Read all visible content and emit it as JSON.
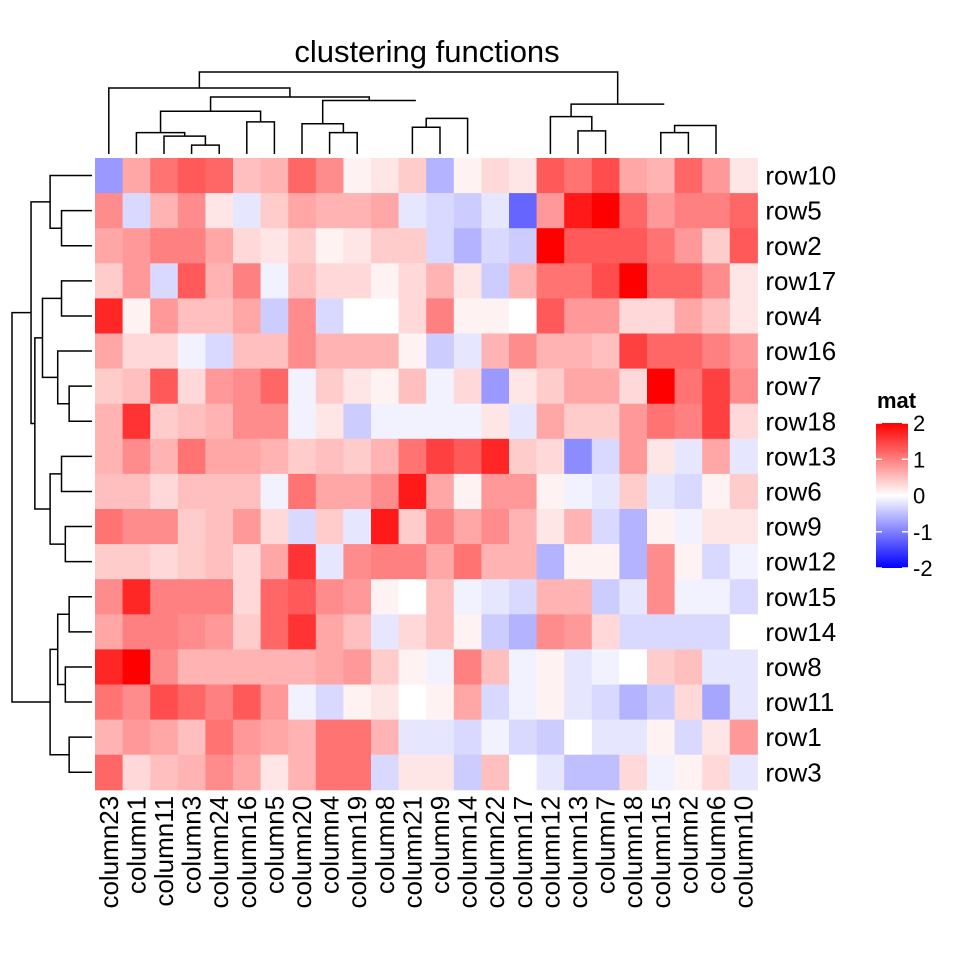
{
  "chart_data": {
    "type": "heatmap",
    "title": "clustering functions",
    "columns": [
      "column23",
      "column1",
      "column11",
      "column3",
      "column24",
      "column16",
      "column5",
      "column20",
      "column4",
      "column19",
      "column8",
      "column21",
      "column9",
      "column14",
      "column22",
      "column17",
      "column12",
      "column13",
      "column7",
      "column18",
      "column15",
      "column2",
      "column6",
      "column10"
    ],
    "rows": [
      "row10",
      "row5",
      "row2",
      "row17",
      "row4",
      "row16",
      "row7",
      "row18",
      "row13",
      "row6",
      "row9",
      "row12",
      "row15",
      "row14",
      "row8",
      "row11",
      "row1",
      "row3"
    ],
    "values": [
      [
        -0.8,
        0.7,
        1.1,
        1.3,
        1.2,
        0.5,
        0.6,
        1.2,
        0.9,
        0.1,
        0.2,
        0.4,
        -0.6,
        0.1,
        0.3,
        0.2,
        1.3,
        1.1,
        1.4,
        0.7,
        0.6,
        1.2,
        0.8,
        0.2
      ],
      [
        0.9,
        -0.3,
        0.6,
        0.9,
        0.2,
        -0.2,
        0.4,
        0.7,
        0.6,
        0.6,
        0.7,
        -0.2,
        -0.3,
        -0.4,
        -0.2,
        -1.2,
        0.8,
        1.8,
        2.0,
        1.2,
        0.8,
        1.0,
        1.0,
        1.2
      ],
      [
        0.7,
        0.8,
        1.0,
        1.0,
        0.7,
        0.3,
        0.2,
        0.4,
        0.1,
        0.2,
        0.4,
        0.4,
        -0.3,
        -0.6,
        -0.3,
        -0.4,
        2.3,
        1.3,
        1.3,
        1.3,
        1.1,
        0.8,
        0.4,
        1.3
      ],
      [
        0.4,
        0.8,
        -0.3,
        1.3,
        0.6,
        1.0,
        -0.1,
        0.5,
        0.3,
        0.3,
        0.1,
        0.3,
        0.6,
        0.2,
        -0.4,
        0.6,
        1.1,
        1.1,
        1.4,
        2.4,
        1.2,
        1.2,
        0.9,
        0.2
      ],
      [
        1.7,
        0.1,
        0.8,
        0.5,
        0.5,
        0.7,
        -0.4,
        0.9,
        -0.3,
        0.0,
        0.0,
        0.3,
        1.0,
        0.1,
        0.1,
        0.0,
        1.3,
        0.8,
        0.8,
        0.3,
        0.3,
        0.7,
        0.5,
        0.2
      ],
      [
        0.7,
        0.3,
        0.3,
        -0.1,
        -0.3,
        0.5,
        0.5,
        0.9,
        0.6,
        0.6,
        0.6,
        0.1,
        -0.4,
        -0.2,
        0.6,
        0.9,
        0.6,
        0.6,
        0.5,
        1.5,
        1.2,
        1.2,
        1.0,
        0.8
      ],
      [
        0.4,
        0.5,
        1.3,
        0.3,
        0.8,
        0.9,
        1.2,
        -0.1,
        0.4,
        0.2,
        0.1,
        0.5,
        -0.1,
        0.3,
        -0.8,
        0.2,
        0.4,
        0.7,
        0.7,
        0.3,
        2.3,
        1.1,
        1.5,
        0.9
      ],
      [
        0.6,
        1.6,
        0.4,
        0.5,
        0.6,
        0.9,
        0.9,
        -0.1,
        0.2,
        -0.4,
        -0.1,
        -0.1,
        -0.1,
        -0.1,
        0.2,
        -0.2,
        0.7,
        0.4,
        0.4,
        0.8,
        1.1,
        1.0,
        1.5,
        0.3
      ],
      [
        0.6,
        0.9,
        0.6,
        1.1,
        0.7,
        0.7,
        0.6,
        0.4,
        0.5,
        0.4,
        0.6,
        1.1,
        1.5,
        1.3,
        1.7,
        0.4,
        0.3,
        -0.9,
        -0.3,
        0.8,
        0.2,
        -0.2,
        0.7,
        -0.2
      ],
      [
        0.5,
        0.5,
        0.3,
        0.5,
        0.5,
        0.5,
        -0.1,
        1.1,
        0.7,
        0.7,
        0.9,
        1.8,
        0.7,
        0.1,
        0.8,
        0.8,
        0.1,
        -0.1,
        -0.2,
        0.4,
        -0.2,
        -0.3,
        0.1,
        0.4
      ],
      [
        1.1,
        0.9,
        0.9,
        0.4,
        0.5,
        0.8,
        0.3,
        -0.3,
        0.4,
        -0.2,
        1.8,
        0.4,
        1.0,
        0.7,
        0.9,
        0.6,
        0.2,
        0.6,
        -0.3,
        -0.6,
        0.1,
        -0.1,
        0.2,
        0.2
      ],
      [
        0.4,
        0.4,
        0.3,
        0.4,
        0.5,
        0.3,
        0.7,
        1.6,
        -0.2,
        0.9,
        1.0,
        1.0,
        0.7,
        1.1,
        0.6,
        0.6,
        -0.6,
        0.1,
        0.1,
        -0.6,
        0.9,
        0.1,
        -0.3,
        -0.1
      ],
      [
        0.9,
        1.7,
        1.0,
        1.0,
        1.0,
        0.3,
        1.2,
        1.3,
        0.9,
        0.8,
        0.1,
        0.0,
        0.5,
        -0.1,
        -0.2,
        -0.3,
        0.6,
        0.6,
        -0.4,
        -0.2,
        0.9,
        -0.1,
        -0.1,
        -0.3
      ],
      [
        0.7,
        1.0,
        1.0,
        0.9,
        0.8,
        0.4,
        1.2,
        1.6,
        0.7,
        0.5,
        -0.2,
        0.3,
        0.5,
        0.1,
        -0.4,
        -0.6,
        0.9,
        0.8,
        0.3,
        -0.3,
        -0.3,
        -0.3,
        -0.3,
        0.0
      ],
      [
        1.7,
        2.4,
        0.9,
        0.6,
        0.6,
        0.6,
        0.6,
        0.6,
        0.7,
        0.8,
        0.4,
        0.1,
        -0.1,
        1.0,
        0.5,
        -0.1,
        0.1,
        -0.2,
        -0.1,
        0.0,
        0.4,
        0.5,
        -0.2,
        -0.2
      ],
      [
        1.1,
        0.9,
        1.4,
        1.2,
        1.0,
        1.3,
        0.8,
        -0.1,
        -0.3,
        0.1,
        0.2,
        0.0,
        0.1,
        0.7,
        -0.3,
        -0.1,
        0.1,
        -0.2,
        -0.3,
        -0.6,
        -0.4,
        0.3,
        -0.7,
        -0.2
      ],
      [
        0.6,
        0.8,
        0.7,
        0.5,
        1.1,
        0.8,
        0.7,
        0.6,
        1.1,
        1.1,
        0.6,
        -0.2,
        -0.2,
        -0.3,
        -0.1,
        -0.3,
        -0.4,
        0.0,
        -0.2,
        -0.2,
        0.1,
        -0.3,
        0.2,
        0.8
      ],
      [
        1.2,
        0.3,
        0.5,
        0.6,
        0.9,
        0.7,
        0.2,
        0.6,
        1.1,
        1.1,
        -0.3,
        0.2,
        0.2,
        -0.4,
        0.5,
        0.0,
        -0.2,
        -0.5,
        -0.5,
        0.3,
        -0.1,
        0.1,
        0.3,
        -0.2
      ]
    ],
    "row_dendrogram_order": "hierarchical clustering",
    "column_dendrogram_order": "hierarchical clustering",
    "legend": {
      "title": "mat",
      "ticks": [
        "2",
        "1",
        "0",
        "-1",
        "-2"
      ],
      "tick_values": [
        2,
        1,
        0,
        -1,
        -2
      ],
      "placement": "right"
    },
    "color_scale": {
      "low": "#0000ff",
      "mid": "#ffffff",
      "high": "#ff0000",
      "range": [
        -2,
        2
      ]
    }
  }
}
